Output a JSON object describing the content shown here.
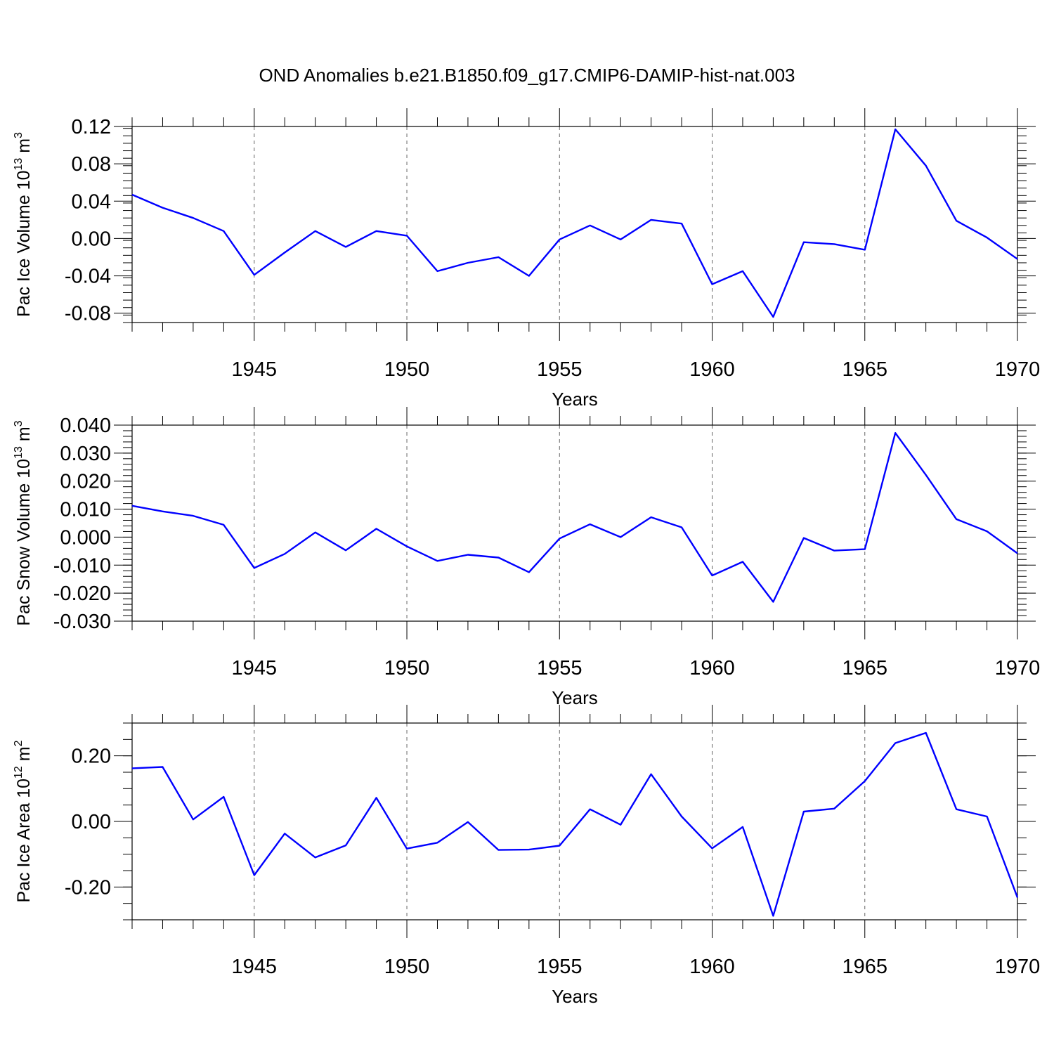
{
  "figure": {
    "title": "OND Anomalies b.e21.B1850.f09_g17.CMIP6-DAMIP-hist-nat.003",
    "line_color": "#0000ff"
  },
  "chart_data": [
    {
      "type": "line",
      "ylabel": "Pac Ice Volume 10",
      "ylabel_exp": "13",
      "ylabel_unit": "m",
      "ylabel_unit_exp": "3",
      "xlabel": "Years",
      "xlim": [
        1941,
        1970
      ],
      "ylim": [
        -0.09,
        0.12
      ],
      "x_ticks": [
        1945,
        1950,
        1955,
        1960,
        1965,
        1970
      ],
      "y_ticks": [
        -0.08,
        -0.04,
        0.0,
        0.04,
        0.08,
        0.12
      ],
      "y_tick_labels": [
        "-0.08",
        "-0.04",
        "0.00",
        "0.04",
        "0.08",
        "0.12"
      ],
      "y_minor_step": 0.008,
      "x": [
        1941,
        1942,
        1943,
        1944,
        1945,
        1946,
        1947,
        1948,
        1949,
        1950,
        1951,
        1952,
        1953,
        1954,
        1955,
        1956,
        1957,
        1958,
        1959,
        1960,
        1961,
        1962,
        1963,
        1964,
        1965,
        1966,
        1967,
        1968,
        1969,
        1970
      ],
      "values": [
        0.047,
        0.033,
        0.022,
        0.008,
        -0.039,
        -0.015,
        0.008,
        -0.009,
        0.008,
        0.003,
        -0.035,
        -0.026,
        -0.02,
        -0.04,
        -0.001,
        0.014,
        -0.001,
        0.02,
        0.016,
        -0.049,
        -0.035,
        -0.084,
        -0.004,
        -0.006,
        -0.012,
        0.117,
        0.078,
        0.019,
        0.001,
        -0.022
      ]
    },
    {
      "type": "line",
      "ylabel": "Pac Snow Volume 10",
      "ylabel_exp": "13",
      "ylabel_unit": "m",
      "ylabel_unit_exp": "3",
      "xlabel": "Years",
      "xlim": [
        1941,
        1970
      ],
      "ylim": [
        -0.03,
        0.04
      ],
      "x_ticks": [
        1945,
        1950,
        1955,
        1960,
        1965,
        1970
      ],
      "y_ticks": [
        -0.03,
        -0.02,
        -0.01,
        0.0,
        0.01,
        0.02,
        0.03,
        0.04
      ],
      "y_tick_labels": [
        "-0.030",
        "-0.020",
        "-0.010",
        "0.000",
        "0.010",
        "0.020",
        "0.030",
        "0.040"
      ],
      "y_minor_step": 0.002,
      "x": [
        1941,
        1942,
        1943,
        1944,
        1945,
        1946,
        1947,
        1948,
        1949,
        1950,
        1951,
        1952,
        1953,
        1954,
        1955,
        1956,
        1957,
        1958,
        1959,
        1960,
        1961,
        1962,
        1963,
        1964,
        1965,
        1966,
        1967,
        1968,
        1969,
        1970
      ],
      "values": [
        0.0112,
        0.0092,
        0.0076,
        0.0044,
        -0.011,
        -0.006,
        0.0017,
        -0.0047,
        0.003,
        -0.0033,
        -0.0085,
        -0.0063,
        -0.0073,
        -0.0125,
        -0.0005,
        0.0046,
        0.0,
        0.0071,
        0.0035,
        -0.0137,
        -0.0088,
        -0.0231,
        -0.0003,
        -0.0048,
        -0.0043,
        0.0372,
        0.0222,
        0.0064,
        0.0021,
        -0.0058
      ]
    },
    {
      "type": "line",
      "ylabel": "Pac Ice Area 10",
      "ylabel_exp": "12",
      "ylabel_unit": "m",
      "ylabel_unit_exp": "2",
      "xlabel": "Years",
      "xlim": [
        1941,
        1970
      ],
      "ylim": [
        -0.3,
        0.3
      ],
      "x_ticks": [
        1945,
        1950,
        1955,
        1960,
        1965,
        1970
      ],
      "y_ticks": [
        -0.2,
        0.0,
        0.2
      ],
      "y_tick_labels": [
        "-0.20",
        "0.00",
        "0.20"
      ],
      "y_minor_step": 0.05,
      "x": [
        1941,
        1942,
        1943,
        1944,
        1945,
        1946,
        1947,
        1948,
        1949,
        1950,
        1951,
        1952,
        1953,
        1954,
        1955,
        1956,
        1957,
        1958,
        1959,
        1960,
        1961,
        1962,
        1963,
        1964,
        1965,
        1966,
        1967,
        1968,
        1969,
        1970
      ],
      "values": [
        0.162,
        0.166,
        0.006,
        0.075,
        -0.164,
        -0.037,
        -0.11,
        -0.073,
        0.072,
        -0.083,
        -0.065,
        -0.002,
        -0.087,
        -0.086,
        -0.074,
        0.037,
        -0.01,
        0.144,
        0.015,
        -0.082,
        -0.017,
        -0.288,
        0.03,
        0.039,
        0.123,
        0.239,
        0.27,
        0.037,
        0.015,
        -0.232
      ]
    }
  ]
}
